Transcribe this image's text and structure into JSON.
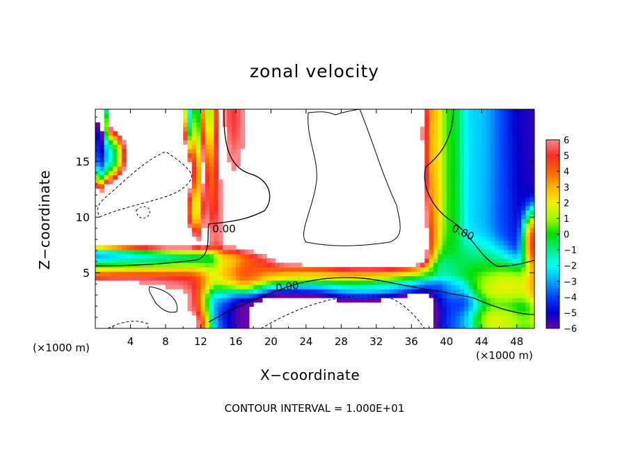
{
  "chart_data": {
    "type": "heatmap",
    "title": "zonal velocity",
    "xlabel": "X−coordinate",
    "ylabel": "Z−coordinate",
    "x_unit": "(×1000 m)",
    "x_ticks": [
      4,
      8,
      12,
      16,
      20,
      24,
      28,
      32,
      36,
      40,
      44,
      48
    ],
    "y_ticks": [
      5,
      10,
      15
    ],
    "xlim": [
      0,
      50
    ],
    "ylim": [
      0,
      19.7
    ],
    "colorbar": {
      "ticks": [
        6,
        5,
        4,
        3,
        2,
        1,
        0,
        -1,
        -2,
        -3,
        -4,
        -5,
        -6
      ],
      "tick_labels": [
        "6",
        "5",
        "4",
        "3",
        "2",
        "1",
        "0",
        "−1",
        "−2",
        "−3",
        "−4",
        "−5",
        "−6"
      ],
      "range": [
        -6,
        6
      ],
      "out_of_range": "white",
      "stops": [
        {
          "v": 6,
          "color": "#ff8888"
        },
        {
          "v": 5,
          "color": "#ff2a2a"
        },
        {
          "v": 4,
          "color": "#ff6400"
        },
        {
          "v": 3,
          "color": "#ffb400"
        },
        {
          "v": 2,
          "color": "#f0f000"
        },
        {
          "v": 1,
          "color": "#a0ff00"
        },
        {
          "v": 0,
          "color": "#00dd00"
        },
        {
          "v": -1,
          "color": "#00ee88"
        },
        {
          "v": -2,
          "color": "#00ffff"
        },
        {
          "v": -3,
          "color": "#00aaff"
        },
        {
          "v": -4,
          "color": "#0040ff"
        },
        {
          "v": -5,
          "color": "#0000cc"
        },
        {
          "v": -6,
          "color": "#6600aa"
        }
      ]
    },
    "contour_labels": [
      "0.00",
      "0.00",
      "0.00"
    ],
    "contour_interval": "CONTOUR INTERVAL = 1.000E+01",
    "features": [
      {
        "x": 0.6,
        "z": 18.5,
        "sx": 0.3,
        "sz": 2.8,
        "v": -9
      },
      {
        "x": 1.2,
        "z": 15.2,
        "sx": 1.3,
        "sz": 1.2,
        "v": -7
      },
      {
        "x": 8.5,
        "z": 12.5,
        "sx": 5.5,
        "sz": 3.5,
        "v": 12
      },
      {
        "x": 10.7,
        "z": 18,
        "sx": 0.3,
        "sz": 2.2,
        "v": -5
      },
      {
        "x": 11.6,
        "z": 15.5,
        "sx": 0.3,
        "sz": 3.5,
        "v": -5
      },
      {
        "x": 11.3,
        "z": 11,
        "sx": 0.7,
        "sz": 1.5,
        "v": -5
      },
      {
        "x": 13.0,
        "z": 17,
        "sx": 0.5,
        "sz": 3,
        "v": -2
      },
      {
        "x": 13.5,
        "z": 12,
        "sx": 0.7,
        "sz": 2.5,
        "v": -1
      },
      {
        "x": 15.8,
        "z": 16,
        "sx": 0.9,
        "sz": 3.5,
        "v": 2
      },
      {
        "x": 17.5,
        "z": 16,
        "sx": 0.7,
        "sz": 3.5,
        "v": 5
      },
      {
        "x": 17.5,
        "z": 10.5,
        "sx": 0.6,
        "sz": 1.2,
        "v": 5
      },
      {
        "x": 20.5,
        "z": 14,
        "sx": 0.7,
        "sz": 3,
        "v": 5
      },
      {
        "x": 24,
        "z": 13.5,
        "sx": 6,
        "sz": 5.5,
        "v": 12
      },
      {
        "x": 14.6,
        "z": 7,
        "sx": 0.7,
        "sz": 2.2,
        "v": 5
      },
      {
        "x": 15.0,
        "z": 7.5,
        "sx": 0.3,
        "sz": 0.3,
        "v": 8
      },
      {
        "x": 17,
        "z": 5.5,
        "sx": 1.2,
        "sz": 1.2,
        "v": 5
      },
      {
        "x": 21,
        "z": 8.5,
        "sx": 1.5,
        "sz": 0.5,
        "v": 5
      },
      {
        "x": 5,
        "z": 6.4,
        "sx": 7,
        "sz": 0.5,
        "v": -5
      },
      {
        "x": 6,
        "z": 5.7,
        "sx": 7,
        "sz": 0.5,
        "v": -1
      },
      {
        "x": 6,
        "z": 5.0,
        "sx": 7,
        "sz": 0.6,
        "v": 4
      },
      {
        "x": 9,
        "z": 4.0,
        "sx": 4,
        "sz": 0.6,
        "v": 5
      },
      {
        "x": 4.5,
        "z": 1.8,
        "sx": 4,
        "sz": 1.6,
        "v": 11
      },
      {
        "x": 6,
        "z": 2.0,
        "sx": 0.5,
        "sz": 0.3,
        "v": 5
      },
      {
        "x": 8.5,
        "z": 0.6,
        "sx": 2,
        "sz": 0.6,
        "v": 12
      },
      {
        "x": 25,
        "z": 4.7,
        "sx": 6,
        "sz": 0.5,
        "v": 3
      },
      {
        "x": 31,
        "z": 4.9,
        "sx": 6,
        "sz": 0.4,
        "v": 1
      },
      {
        "x": 27,
        "z": 3.8,
        "sx": 5,
        "sz": 0.5,
        "v": -3
      },
      {
        "x": 34,
        "z": 4.1,
        "sx": 4,
        "sz": 0.5,
        "v": -4
      },
      {
        "x": 27,
        "z": 2.0,
        "sx": 6,
        "sz": 1.6,
        "v": -12
      },
      {
        "x": 32,
        "z": 1.2,
        "sx": 4,
        "sz": 1.1,
        "v": -12
      },
      {
        "x": 14,
        "z": 2.5,
        "sx": 1.2,
        "sz": 2.3,
        "v": -4
      },
      {
        "x": 16,
        "z": 1.5,
        "sx": 1.5,
        "sz": 1.0,
        "v": -6
      },
      {
        "x": 11.5,
        "z": 1.5,
        "sx": 1.0,
        "sz": 1.5,
        "v": 5
      },
      {
        "x": 30,
        "z": 13,
        "sx": 3,
        "sz": 7,
        "v": 12
      },
      {
        "x": 34,
        "z": 10,
        "sx": 2,
        "sz": 3,
        "v": 10
      },
      {
        "x": 36.7,
        "z": 16,
        "sx": 0.6,
        "sz": 4,
        "v": 6
      },
      {
        "x": 38.5,
        "z": 14,
        "sx": 0.6,
        "sz": 4,
        "v": 2
      },
      {
        "x": 40.5,
        "z": 12,
        "sx": 0.8,
        "sz": 6,
        "v": 0
      },
      {
        "x": 43.5,
        "z": 13,
        "sx": 1.4,
        "sz": 6,
        "v": -2.5
      },
      {
        "x": 46.5,
        "z": 12,
        "sx": 1.4,
        "sz": 6,
        "v": -4
      },
      {
        "x": 48.5,
        "z": 14,
        "sx": 1.0,
        "sz": 6,
        "v": -5.5
      },
      {
        "x": 49.5,
        "z": 8.0,
        "sx": 0.6,
        "sz": 1.5,
        "v": 8
      },
      {
        "x": 44,
        "z": 6,
        "sx": 2,
        "sz": 1.2,
        "v": 0
      },
      {
        "x": 47,
        "z": 4.2,
        "sx": 2.5,
        "sz": 1.2,
        "v": 5
      },
      {
        "x": 40,
        "z": 2.6,
        "sx": 1.2,
        "sz": 2.0,
        "v": -4
      },
      {
        "x": 41.5,
        "z": 1.0,
        "sx": 1.5,
        "sz": 1.2,
        "v": -5
      },
      {
        "x": 45,
        "z": 0.8,
        "sx": 2.5,
        "sz": 0.8,
        "v": 3
      }
    ]
  }
}
